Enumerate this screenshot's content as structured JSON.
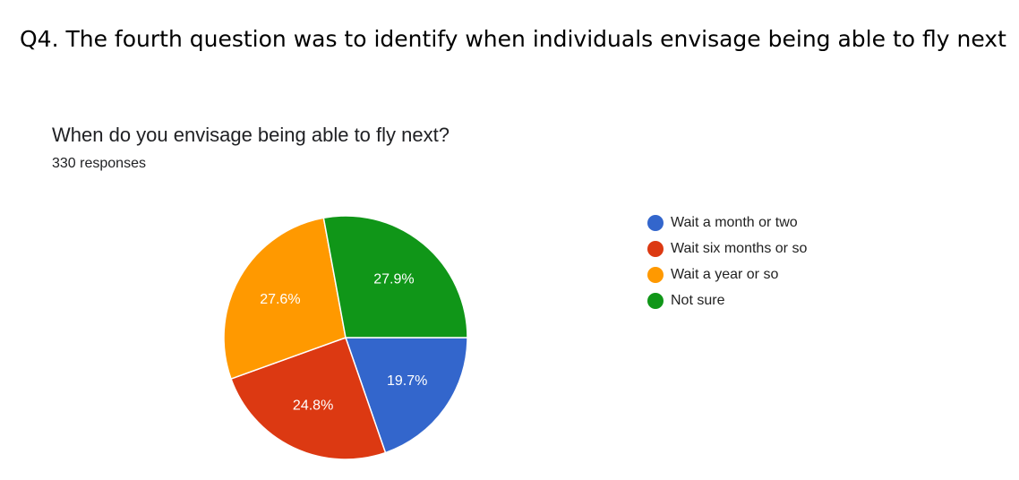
{
  "heading": "Q4. The fourth question was to identify when individuals envisage being able to fly next",
  "chart_data": {
    "type": "pie",
    "title": "When do you envisage being able to fly next?",
    "subtitle": "330 responses",
    "categories": [
      "Wait a month or two",
      "Wait six months or so",
      "Wait a year or so",
      "Not sure"
    ],
    "values": [
      19.7,
      24.8,
      27.6,
      27.9
    ],
    "value_labels": [
      "19.7%",
      "24.8%",
      "27.6%",
      "27.9%"
    ],
    "colors": [
      "#3366cc",
      "#dc3912",
      "#ff9900",
      "#109618"
    ]
  }
}
